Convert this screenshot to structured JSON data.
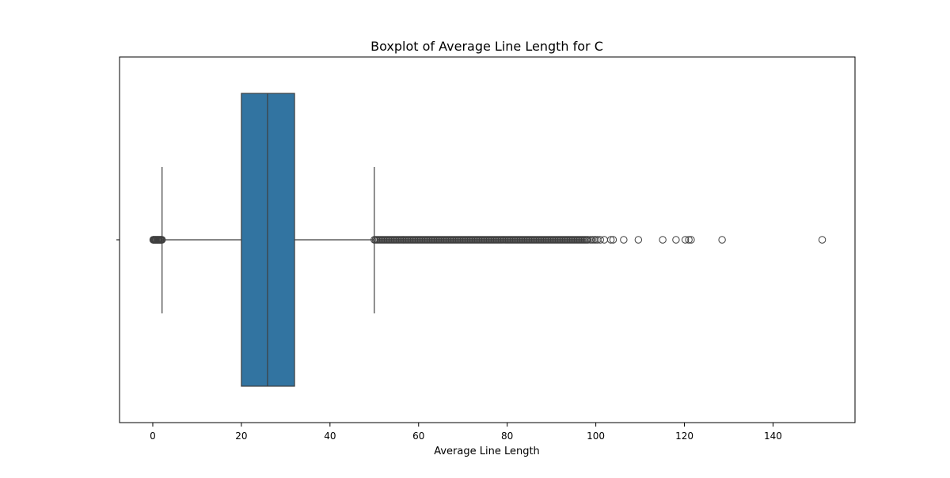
{
  "chart_data": {
    "type": "box",
    "orientation": "horizontal",
    "title": "Boxplot of Average Line Length for C",
    "xlabel": "Average Line Length",
    "ylabel": "",
    "xlim": [
      -7.5,
      158.5
    ],
    "x_ticks": [
      0,
      20,
      40,
      60,
      80,
      100,
      120,
      140
    ],
    "x_tick_labels": [
      "0",
      "20",
      "40",
      "60",
      "80",
      "100",
      "120",
      "140"
    ],
    "grid": false,
    "legend": "none",
    "box": {
      "whisker_low": 2.1,
      "q1": 20,
      "median": 25.9,
      "q3": 32,
      "whisker_high": 50,
      "fill_color": "#3274a1",
      "line_color": "#3f3f3f"
    },
    "outliers_dense_ranges": [
      [
        0.1,
        2.1
      ],
      [
        50,
        98.5
      ]
    ],
    "outliers": [
      0.1,
      0.3,
      0.5,
      0.7,
      0.9,
      1.1,
      1.3,
      1.5,
      1.7,
      1.9,
      2.1,
      98.8,
      99.2,
      99.6,
      100.0,
      100.4,
      101.0,
      101.9,
      103.4,
      103.9,
      106.3,
      109.6,
      115.1,
      118.1,
      120.2,
      121.0,
      121.5,
      128.5,
      151.1
    ]
  }
}
